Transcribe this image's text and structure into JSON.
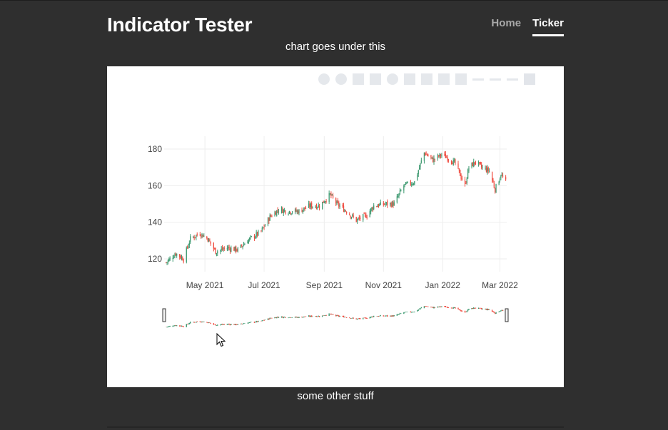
{
  "header": {
    "title": "Indicator Tester",
    "nav": [
      {
        "label": "Home",
        "active": false
      },
      {
        "label": "Ticker",
        "active": true
      }
    ]
  },
  "captions": {
    "above_chart": "chart goes under this",
    "below_chart": "some other stuff"
  },
  "modebar": {
    "icons": [
      "camera-icon",
      "zoom-icon",
      "pan-icon",
      "box-select-icon",
      "lasso-select-icon",
      "zoom-in-icon",
      "zoom-out-icon",
      "autoscale-icon",
      "reset-axes-icon",
      "spike-lines-icon",
      "hover-closest-icon",
      "hover-compare-icon",
      "plotly-logo-icon"
    ]
  },
  "colors": {
    "increasing": "#3d9970",
    "decreasing": "#ef4b3f",
    "page_bg": "#2f2f2f",
    "chart_bg": "#ffffff"
  },
  "chart_data": {
    "type": "candlestick",
    "title": "",
    "xlabel": "",
    "ylabel": "",
    "x_range": [
      "2021-03-20",
      "2022-03-08"
    ],
    "ylim": [
      113,
      187
    ],
    "y_ticks": [
      120,
      140,
      160,
      180
    ],
    "x_ticks": [
      {
        "date": "2021-05-01",
        "label": "May 2021"
      },
      {
        "date": "2021-07-01",
        "label": "Jul 2021"
      },
      {
        "date": "2021-09-01",
        "label": "Sep 2021"
      },
      {
        "date": "2021-11-01",
        "label": "Nov 2021"
      },
      {
        "date": "2022-01-01",
        "label": "Jan 2022"
      },
      {
        "date": "2022-03-01",
        "label": "Mar 2022"
      }
    ],
    "grid": true,
    "rangeslider": true,
    "close_path": [
      [
        "2021-03-22",
        118
      ],
      [
        "2021-04-01",
        123
      ],
      [
        "2021-04-09",
        120
      ],
      [
        "2021-04-16",
        131
      ],
      [
        "2021-04-26",
        134
      ],
      [
        "2021-05-04",
        131
      ],
      [
        "2021-05-12",
        124
      ],
      [
        "2021-05-24",
        126
      ],
      [
        "2021-06-04",
        125
      ],
      [
        "2021-06-14",
        130
      ],
      [
        "2021-06-28",
        135
      ],
      [
        "2021-07-07",
        143
      ],
      [
        "2021-07-16",
        147
      ],
      [
        "2021-07-26",
        146
      ],
      [
        "2021-08-06",
        146
      ],
      [
        "2021-08-17",
        149
      ],
      [
        "2021-08-27",
        149
      ],
      [
        "2021-09-07",
        155
      ],
      [
        "2021-09-14",
        150
      ],
      [
        "2021-09-24",
        146
      ],
      [
        "2021-10-04",
        141
      ],
      [
        "2021-10-15",
        144
      ],
      [
        "2021-10-22",
        149
      ],
      [
        "2021-11-03",
        150
      ],
      [
        "2021-11-12",
        150
      ],
      [
        "2021-11-22",
        160
      ],
      [
        "2021-12-03",
        162
      ],
      [
        "2021-12-13",
        178
      ],
      [
        "2021-12-22",
        174
      ],
      [
        "2021-12-31",
        177
      ],
      [
        "2022-01-07",
        175
      ],
      [
        "2022-01-14",
        172
      ],
      [
        "2022-01-24",
        160
      ],
      [
        "2022-01-28",
        170
      ],
      [
        "2022-02-04",
        173
      ],
      [
        "2022-02-10",
        170
      ],
      [
        "2022-02-18",
        168
      ],
      [
        "2022-02-24",
        158
      ],
      [
        "2022-03-02",
        166
      ],
      [
        "2022-03-07",
        162
      ]
    ]
  }
}
